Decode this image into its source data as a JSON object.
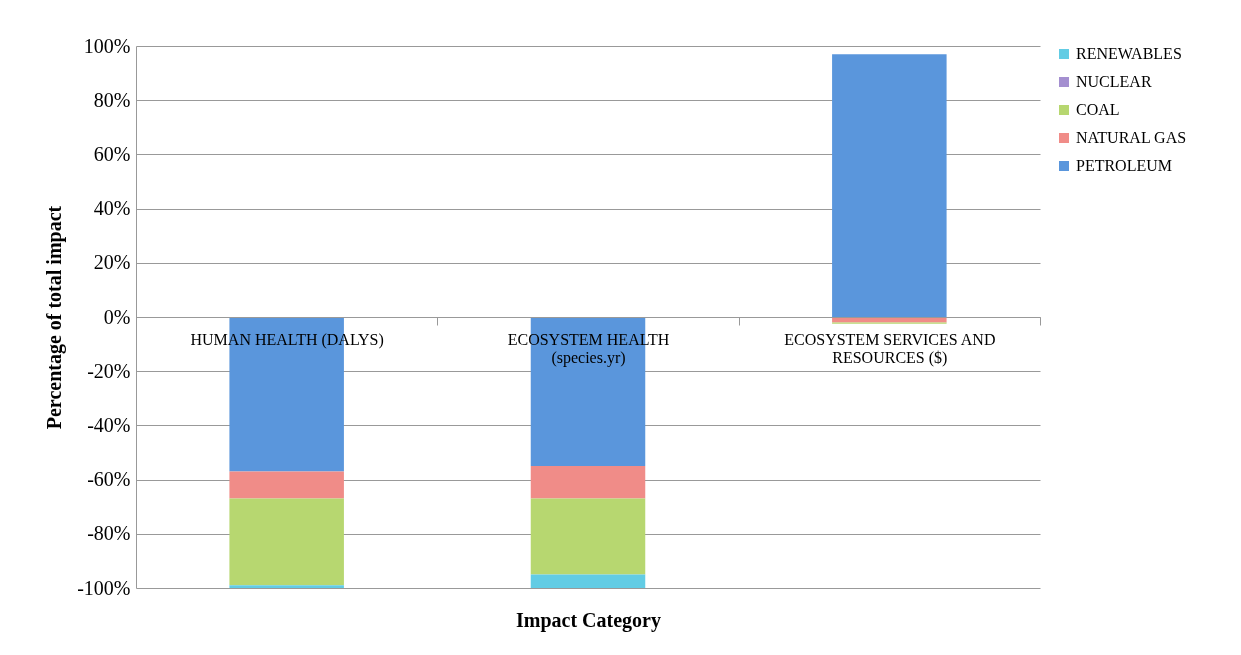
{
  "chart_data": {
    "type": "bar",
    "stacked": true,
    "xlabel": "Impact Category",
    "ylabel": "Percentage of total impact",
    "categories": [
      "HUMAN HEALTH (DALYS)",
      "ECOSYSTEM HEALTH (species.yr)",
      "ECOSYSTEM SERVICES AND RESOURCES ($)"
    ],
    "series": [
      {
        "name": "PETROLEUM",
        "color": "#5a96dc",
        "values": [
          -57,
          -55,
          97
        ]
      },
      {
        "name": "NATURAL GAS",
        "color": "#f08c88",
        "values": [
          -10,
          -12,
          -2
        ]
      },
      {
        "name": "COAL",
        "color": "#b7d770",
        "values": [
          -32,
          -28,
          -0.5
        ]
      },
      {
        "name": "NUCLEAR",
        "color": "#a48fd0",
        "values": [
          0,
          0,
          0
        ]
      },
      {
        "name": "RENEWABLES",
        "color": "#62cce4",
        "values": [
          -1,
          -5,
          0
        ]
      }
    ],
    "ylim": [
      -100,
      100
    ],
    "yticks": [
      {
        "value": -100,
        "label": "-100%"
      },
      {
        "value": -80,
        "label": "-80%"
      },
      {
        "value": -60,
        "label": "-60%"
      },
      {
        "value": -40,
        "label": "-40%"
      },
      {
        "value": -20,
        "label": "-20%"
      },
      {
        "value": 0,
        "label": "0%"
      },
      {
        "value": 20,
        "label": "20%"
      },
      {
        "value": 40,
        "label": "40%"
      },
      {
        "value": 60,
        "label": "60%"
      },
      {
        "value": 80,
        "label": "80%"
      },
      {
        "value": 100,
        "label": "100%"
      }
    ],
    "grid": "y",
    "legend": "right"
  }
}
